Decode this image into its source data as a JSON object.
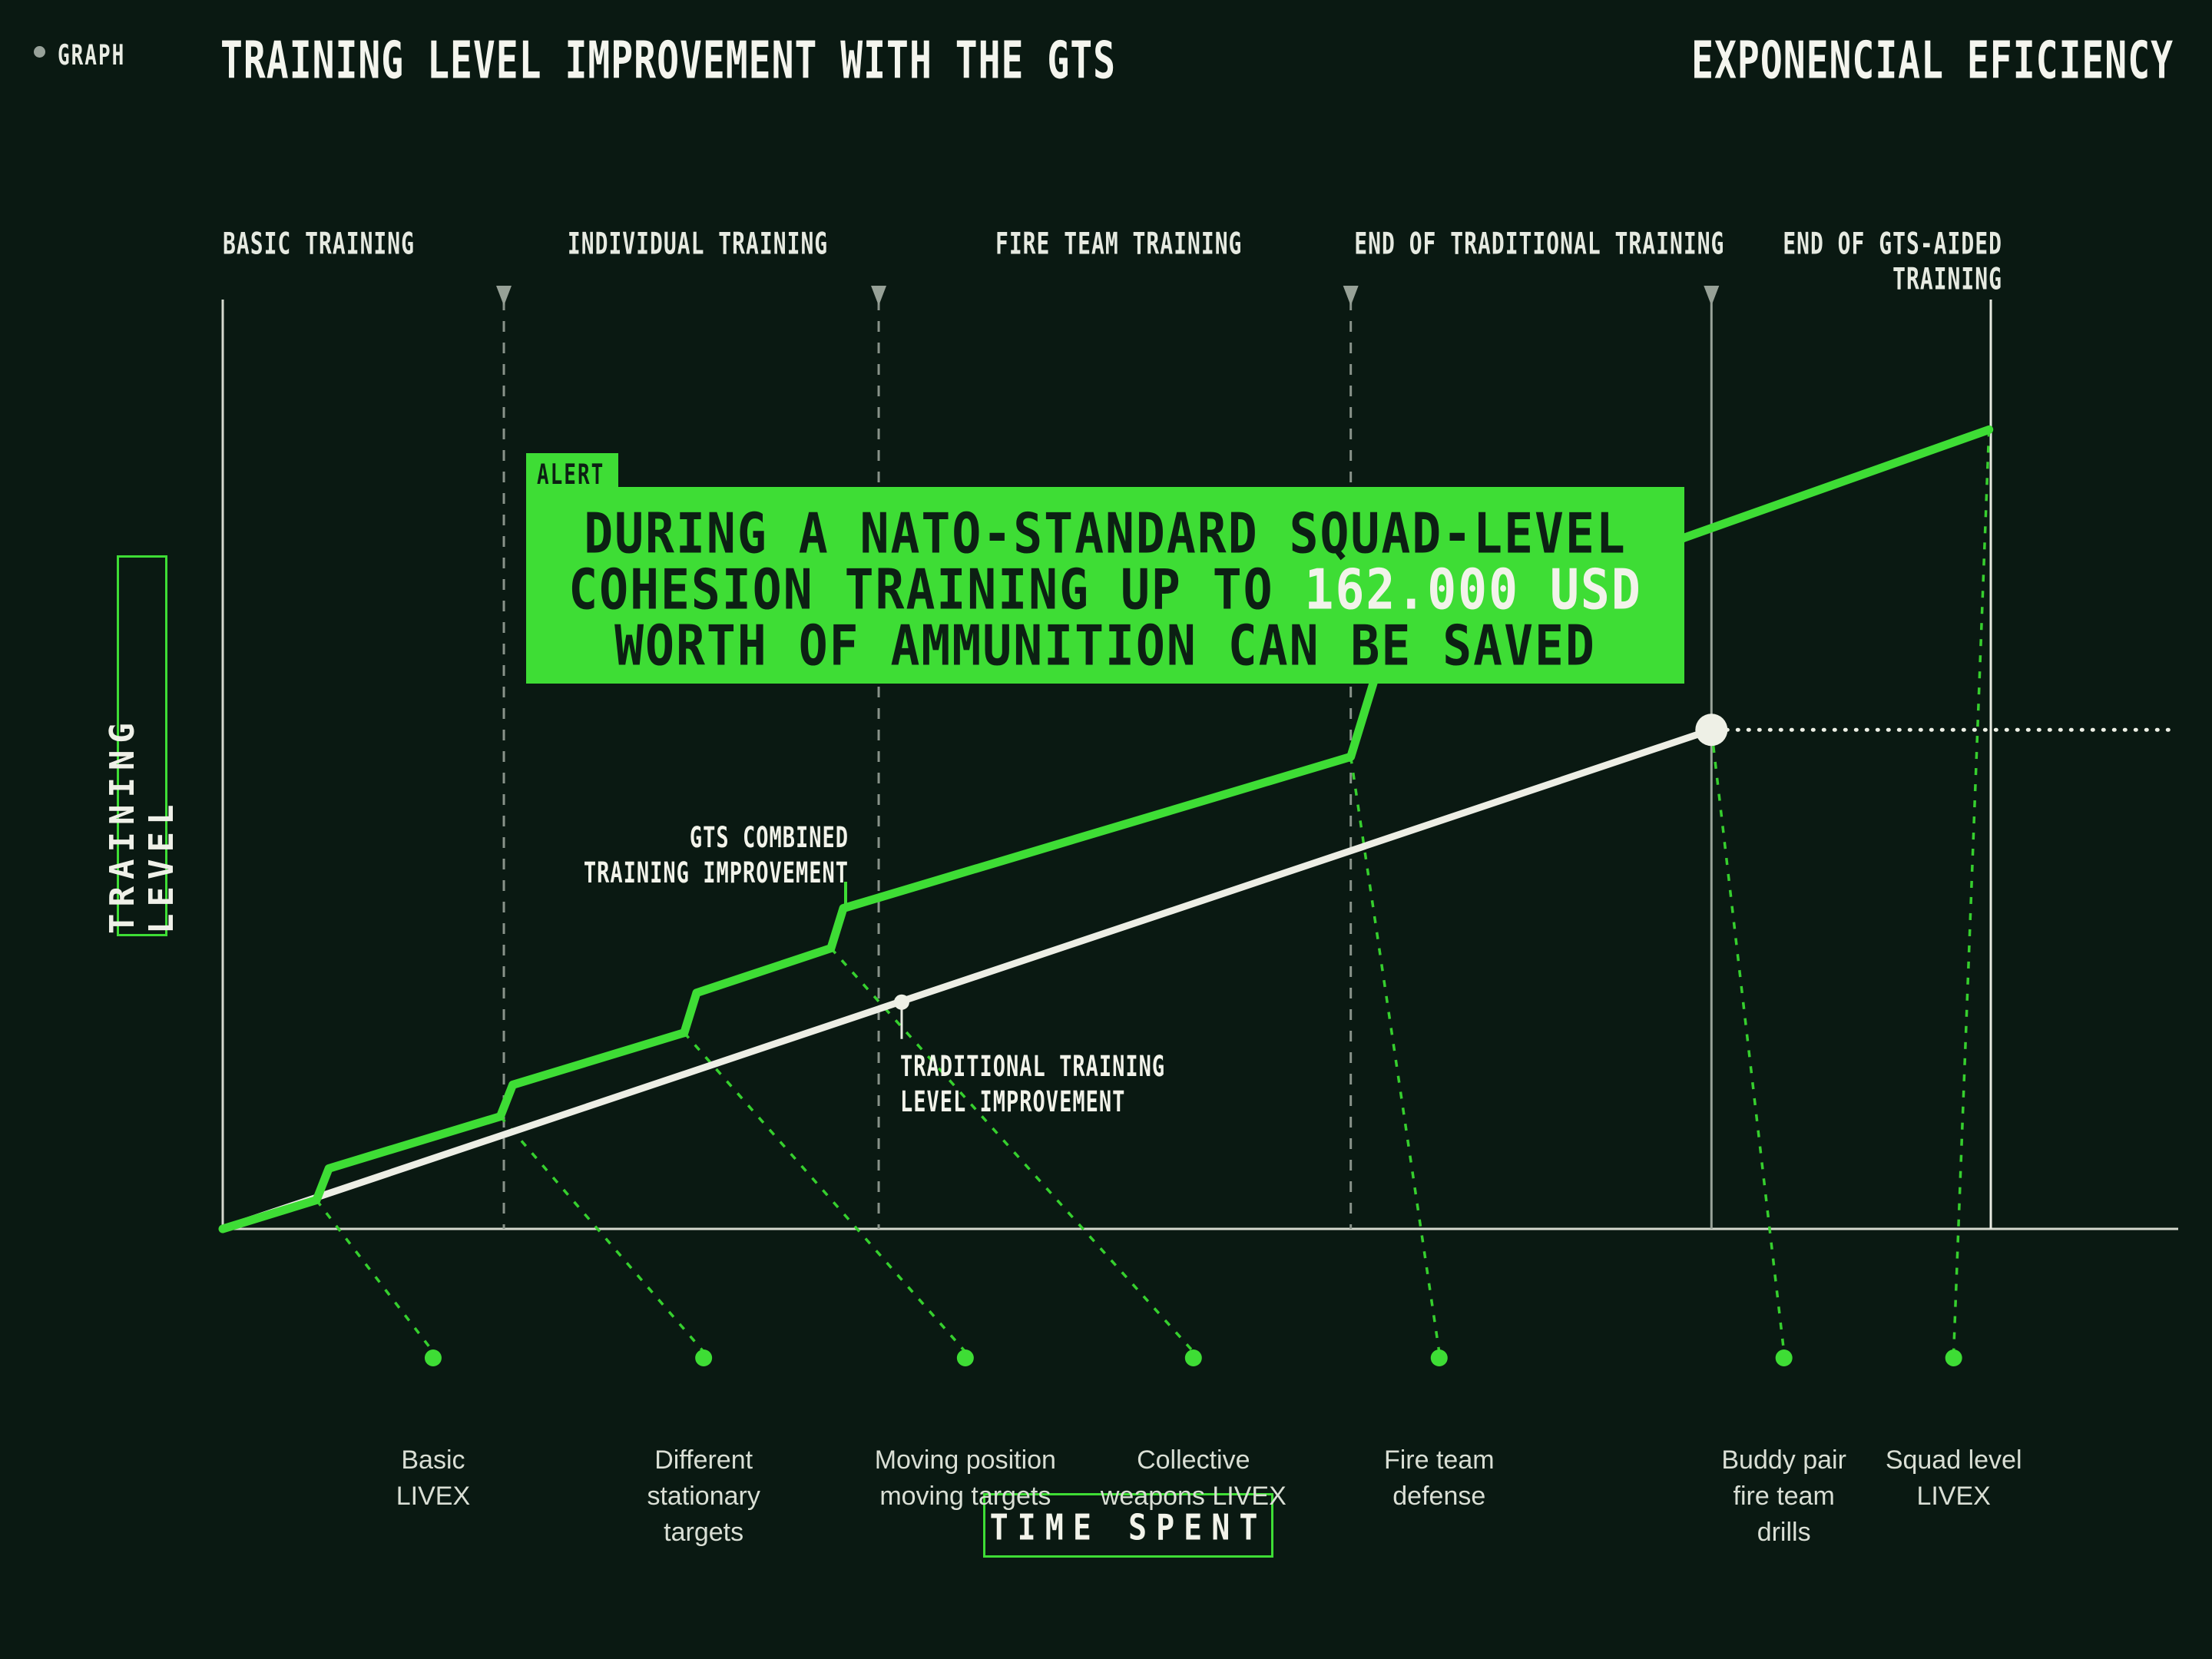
{
  "page": {
    "background": "#0a1912",
    "accent_green": "#3edd35",
    "line_white": "#edeee5",
    "guide_gray": "#89938a"
  },
  "header": {
    "graph_label": "GRAPH",
    "title": "TRAINING LEVEL IMPROVEMENT WITH THE GTS",
    "subtitle": "EXPONENCIAL EFICIENCY"
  },
  "axes": {
    "y_label": "TRAINING LEVEL",
    "x_label": "TIME SPENT"
  },
  "alert": {
    "tag": "ALERT",
    "line1": "DURING A NATO-STANDARD SQUAD-LEVEL",
    "line2_prefix": "COHESION TRAINING UP TO ",
    "line2_highlight": "162.000 USD",
    "line3": "WORTH OF AMMUNITION CAN BE SAVED"
  },
  "annotations": {
    "gts": "GTS COMBINED\nTRAINING IMPROVEMENT",
    "traditional": "TRADITIONAL TRAINING\nLEVEL IMPROVEMENT"
  },
  "chart_data": {
    "type": "line",
    "title": "Training level improvement with the GTS",
    "xlabel": "TIME SPENT",
    "ylabel": "TRAINING LEVEL",
    "x_range": [
      0,
      100
    ],
    "y_range": [
      0,
      100
    ],
    "grid": false,
    "stage_labels": [
      {
        "text": "BASIC TRAINING",
        "x": 0,
        "align": "left"
      },
      {
        "text": "INDIVIDUAL TRAINING",
        "x": 19.5,
        "align": "left"
      },
      {
        "text": "FIRE TEAM TRAINING",
        "x": 43.7,
        "align": "left"
      },
      {
        "text": "END OF TRADITIONAL TRAINING",
        "x": 64.0,
        "align": "left"
      },
      {
        "text": "END OF GTS-AIDED\nTRAINING",
        "x": 100.65,
        "align": "right"
      }
    ],
    "boundaries": [
      {
        "x": 15.9,
        "style": "dashed",
        "arrow": true
      },
      {
        "x": 37.1,
        "style": "dashed",
        "arrow": true
      },
      {
        "x": 63.8,
        "style": "dashed",
        "arrow": true
      },
      {
        "x": 84.2,
        "style": "solid_gray",
        "arrow": true
      },
      {
        "x": 100.0,
        "style": "solid_white",
        "arrow": false
      }
    ],
    "series": [
      {
        "name": "GTS combined training improvement",
        "color": "#3edd35",
        "points": [
          [
            0,
            0
          ],
          [
            5.3,
            3.1
          ],
          [
            6.0,
            6.5
          ],
          [
            15.7,
            12.1
          ],
          [
            16.4,
            15.5
          ],
          [
            26.1,
            21.1
          ],
          [
            26.8,
            25.4
          ],
          [
            34.4,
            30.2
          ],
          [
            35.1,
            34.5
          ],
          [
            63.8,
            50.8
          ],
          [
            65.2,
            59.5
          ],
          [
            82.7,
            74.4
          ],
          [
            99.9,
            86.0
          ]
        ]
      },
      {
        "name": "Traditional training level improvement",
        "color": "#edeee5",
        "points": [
          [
            0,
            0
          ],
          [
            84.2,
            53.7
          ]
        ]
      }
    ],
    "traditional_end_marker": {
      "x": 84.2,
      "y": 53.7
    },
    "traditional_mid_marker": {
      "x": 38.4,
      "y": 24.4
    },
    "saved_level_gap": {
      "y": 53.7,
      "x_from": 84.2,
      "x_to": 110.6
    },
    "events": [
      {
        "label": "Basic\nLIVEX",
        "x": 11.9,
        "from": [
          5.3,
          3.1
        ]
      },
      {
        "label": "Different\nstationary\ntargets",
        "x": 27.2,
        "from": [
          15.7,
          12.1
        ]
      },
      {
        "label": "Moving position\nmoving targets",
        "x": 42.0,
        "from": [
          26.1,
          21.1
        ]
      },
      {
        "label": "Collective\nweapons LIVEX",
        "x": 54.9,
        "from": [
          34.4,
          30.2
        ]
      },
      {
        "label": "Fire team\ndefense",
        "x": 68.8,
        "from": [
          63.8,
          50.8
        ]
      },
      {
        "label": "Buddy pair\nfire team\ndrills",
        "x": 88.3,
        "from": [
          84.2,
          53.7
        ]
      },
      {
        "label": "Squad level\nLIVEX",
        "x": 97.9,
        "from": [
          99.9,
          86.0
        ]
      }
    ],
    "legend_position": "none"
  }
}
